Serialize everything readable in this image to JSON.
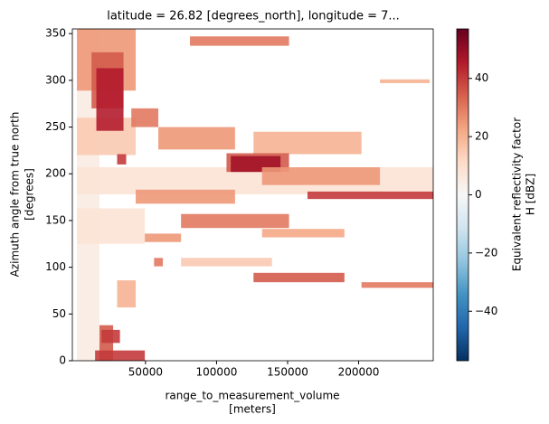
{
  "chart_data": {
    "type": "heatmap",
    "title": "latitude = 26.82 [degrees_north], longitude = 7...",
    "x_label": [
      "range_to_measurement_volume",
      "[meters]"
    ],
    "y_label": [
      "Azimuth angle from true north",
      "[degrees]"
    ],
    "colorbar_label": [
      "Equivalent reflectivity factor",
      "H [dBZ]"
    ],
    "xlim": [
      -1500,
      252500
    ],
    "xticks": [
      50000,
      100000,
      150000,
      200000
    ],
    "ylim": [
      0,
      355
    ],
    "yticks": [
      0,
      50,
      100,
      150,
      200,
      250,
      300,
      350
    ],
    "clim": [
      -57,
      57
    ],
    "cticks": [
      {
        "value": -40,
        "label": "−40"
      },
      {
        "value": -20,
        "label": "−20"
      },
      0,
      20,
      40
    ],
    "colormap": [
      "#053061",
      "#2166ac",
      "#4393c3",
      "#92c5de",
      "#d1e5f0",
      "#f7f7f7",
      "#fddbc7",
      "#f4a582",
      "#d6604d",
      "#b2182b",
      "#67001f"
    ],
    "cells": [
      {
        "x": [
          1700,
          17600
        ],
        "y": [
          0,
          355
        ],
        "value": 5
      },
      {
        "x": [
          1700,
          252500
        ],
        "y": [
          178,
          207
        ],
        "value": 8
      },
      {
        "x": [
          1700,
          49500
        ],
        "y": [
          125,
          163
        ],
        "value": 8
      },
      {
        "x": [
          1700,
          43100
        ],
        "y": [
          289,
          355
        ],
        "value": 25
      },
      {
        "x": [
          1700,
          43100
        ],
        "y": [
          220,
          260
        ],
        "value": 15
      },
      {
        "x": [
          12000,
          34500
        ],
        "y": [
          270,
          330
        ],
        "value": 35
      },
      {
        "x": [
          15400,
          34500
        ],
        "y": [
          246,
          313
        ],
        "value": 45
      },
      {
        "x": [
          40000,
          59000
        ],
        "y": [
          250,
          270
        ],
        "value": 30
      },
      {
        "x": [
          81300,
          151000
        ],
        "y": [
          337,
          347
        ],
        "value": 30
      },
      {
        "x": [
          215000,
          250000
        ],
        "y": [
          297,
          301
        ],
        "value": 20
      },
      {
        "x": [
          59000,
          113000
        ],
        "y": [
          226,
          250
        ],
        "value": 25
      },
      {
        "x": [
          126000,
          202000
        ],
        "y": [
          221,
          245
        ],
        "value": 20
      },
      {
        "x": [
          107000,
          151000
        ],
        "y": [
          202,
          222
        ],
        "value": 35
      },
      {
        "x": [
          110000,
          145000
        ],
        "y": [
          202,
          219
        ],
        "value": 48
      },
      {
        "x": [
          132000,
          215000
        ],
        "y": [
          188,
          207
        ],
        "value": 25
      },
      {
        "x": [
          164000,
          252500
        ],
        "y": [
          173,
          181
        ],
        "value": 40
      },
      {
        "x": [
          43100,
          113000
        ],
        "y": [
          168,
          183
        ],
        "value": 25
      },
      {
        "x": [
          30000,
          36400
        ],
        "y": [
          210,
          221
        ],
        "value": 40
      },
      {
        "x": [
          75000,
          151000
        ],
        "y": [
          142,
          157
        ],
        "value": 30
      },
      {
        "x": [
          49500,
          75000
        ],
        "y": [
          127,
          136
        ],
        "value": 25
      },
      {
        "x": [
          132000,
          190000
        ],
        "y": [
          132,
          141
        ],
        "value": 22
      },
      {
        "x": [
          126000,
          190000
        ],
        "y": [
          84,
          94
        ],
        "value": 35
      },
      {
        "x": [
          202000,
          252500
        ],
        "y": [
          78,
          84
        ],
        "value": 30
      },
      {
        "x": [
          75000,
          139000
        ],
        "y": [
          101,
          110
        ],
        "value": 15
      },
      {
        "x": [
          56000,
          62200
        ],
        "y": [
          101,
          110
        ],
        "value": 30
      },
      {
        "x": [
          30000,
          43100
        ],
        "y": [
          57,
          86
        ],
        "value": 20
      },
      {
        "x": [
          17600,
          27200
        ],
        "y": [
          0,
          38
        ],
        "value": 35
      },
      {
        "x": [
          19000,
          32000
        ],
        "y": [
          19,
          33
        ],
        "value": 40
      },
      {
        "x": [
          14500,
          49500
        ],
        "y": [
          0,
          11
        ],
        "value": 40
      }
    ]
  }
}
